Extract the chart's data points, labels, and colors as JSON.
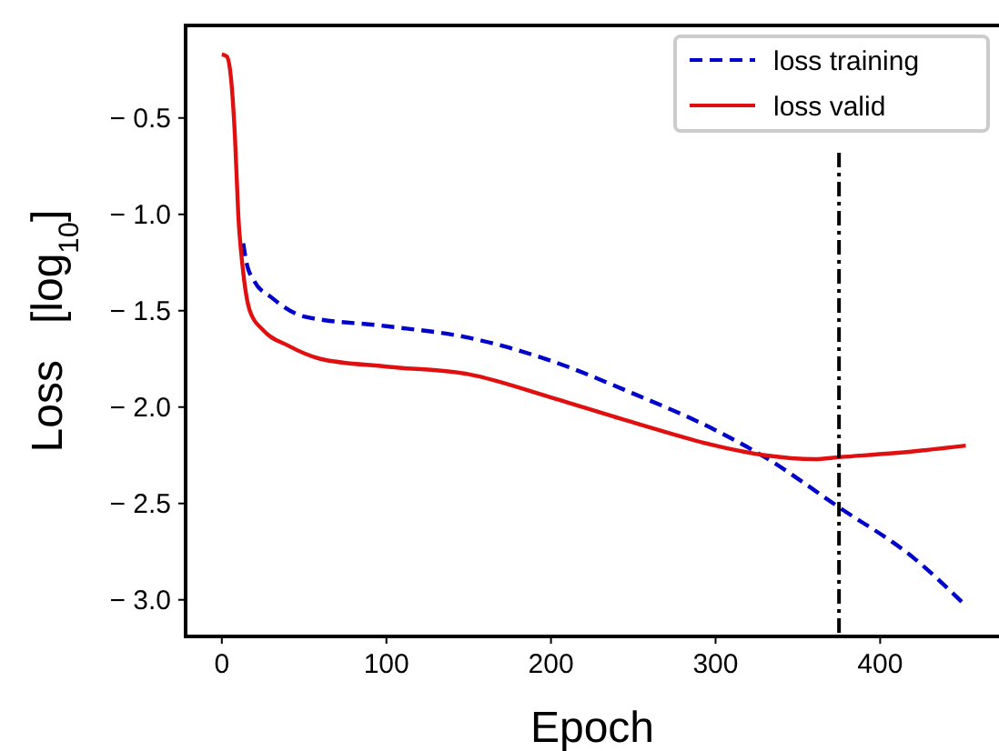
{
  "chart_data": {
    "type": "line",
    "xlabel": "Epoch",
    "ylabel": "Loss   [log$_{10}$]",
    "xlim": [
      -22,
      470
    ],
    "xticks": [
      0,
      100,
      200,
      300,
      400
    ],
    "ylim": [
      -3.19,
      -0.02
    ],
    "yticks": [
      {
        "value": -0.5,
        "label": "− 0.5"
      },
      {
        "value": -1.0,
        "label": "− 1.0"
      },
      {
        "value": -1.5,
        "label": "− 1.5"
      },
      {
        "value": -2.0,
        "label": "− 2.0"
      },
      {
        "value": -2.5,
        "label": "− 2.5"
      },
      {
        "value": -3.0,
        "label": "− 3.0"
      }
    ],
    "grid": false,
    "legend": "top right",
    "series": [
      {
        "name": "loss training",
        "color": "#0000cc",
        "line_style": "dashed",
        "x": [
          13,
          15,
          20,
          30,
          50,
          100,
          150,
          200,
          250,
          300,
          330,
          375,
          420,
          452
        ],
        "values": [
          -1.15,
          -1.25,
          -1.35,
          -1.43,
          -1.53,
          -1.58,
          -1.64,
          -1.76,
          -1.93,
          -2.12,
          -2.26,
          -2.52,
          -2.78,
          -3.03
        ]
      },
      {
        "name": "loss valid",
        "color": "#e01010",
        "line_style": "solid",
        "x": [
          0,
          3,
          5,
          8,
          10,
          13,
          17,
          25,
          40,
          60,
          100,
          150,
          200,
          250,
          300,
          330,
          360,
          375,
          420,
          452
        ],
        "values": [
          -0.17,
          -0.18,
          -0.25,
          -0.6,
          -1.0,
          -1.3,
          -1.5,
          -1.6,
          -1.68,
          -1.75,
          -1.79,
          -1.83,
          -1.95,
          -2.08,
          -2.2,
          -2.25,
          -2.27,
          -2.26,
          -2.23,
          -2.2
        ]
      }
    ],
    "ref_lines": [
      {
        "axis": "x",
        "value": 375,
        "color": "#000000",
        "line_style": "dashed"
      }
    ]
  }
}
